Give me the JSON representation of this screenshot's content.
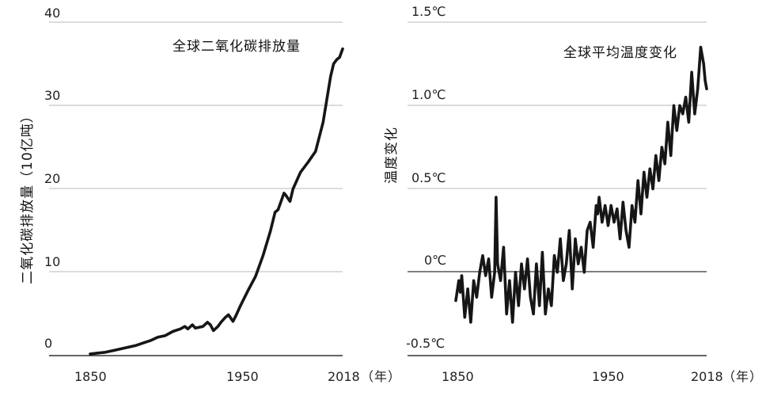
{
  "chart_data": [
    {
      "type": "line",
      "title": "全球二氧化碳排放量",
      "ylabel": "二氧化碳排放量（10亿吨）",
      "xlabel": "",
      "x_unit": "（年）",
      "ylim": [
        0,
        40
      ],
      "xlim": [
        1850,
        2018
      ],
      "grid": true,
      "y_ticks": [
        "0",
        "10",
        "20",
        "30",
        "40"
      ],
      "x_ticks": [
        "1850",
        "1950",
        "2018"
      ],
      "series": [
        {
          "x": [
            1850,
            1855,
            1860,
            1865,
            1870,
            1875,
            1880,
            1885,
            1890,
            1895,
            1900,
            1905,
            1910,
            1913,
            1915,
            1918,
            1920,
            1925,
            1928,
            1930,
            1932,
            1935,
            1937,
            1940,
            1942,
            1945,
            1947,
            1950,
            1955,
            1960,
            1965,
            1970,
            1973,
            1975,
            1979,
            1980,
            1983,
            1985,
            1990,
            1995,
            2000,
            2005,
            2010,
            2012,
            2014,
            2016,
            2018
          ],
          "y": [
            0.2,
            0.3,
            0.4,
            0.6,
            0.8,
            1.0,
            1.2,
            1.5,
            1.8,
            2.2,
            2.4,
            2.9,
            3.2,
            3.5,
            3.2,
            3.7,
            3.3,
            3.5,
            4.0,
            3.7,
            3.0,
            3.5,
            4.0,
            4.6,
            4.9,
            4.1,
            4.8,
            6.0,
            7.8,
            9.5,
            12.0,
            15.0,
            17.2,
            17.5,
            19.5,
            19.3,
            18.5,
            20.0,
            22.0,
            23.2,
            24.5,
            28.0,
            33.5,
            35.0,
            35.5,
            35.8,
            36.8
          ]
        }
      ]
    },
    {
      "type": "line",
      "title": "全球平均温度变化",
      "ylabel": "温度变化",
      "xlabel": "",
      "x_unit": "（年）",
      "ylim": [
        -0.5,
        1.5
      ],
      "xlim": [
        1850,
        2018
      ],
      "grid": true,
      "y_ticks": [
        "-0.5℃",
        "0℃",
        "0.5℃",
        "1.0℃",
        "1.5℃"
      ],
      "x_ticks": [
        "1850",
        "1950",
        "2018"
      ],
      "series": [
        {
          "x": [
            1850,
            1852,
            1853,
            1854,
            1856,
            1858,
            1860,
            1862,
            1864,
            1866,
            1868,
            1870,
            1872,
            1874,
            1876,
            1877,
            1878,
            1880,
            1882,
            1884,
            1886,
            1888,
            1890,
            1892,
            1894,
            1896,
            1898,
            1900,
            1902,
            1904,
            1906,
            1908,
            1910,
            1912,
            1914,
            1916,
            1918,
            1920,
            1922,
            1924,
            1926,
            1928,
            1930,
            1932,
            1934,
            1936,
            1938,
            1940,
            1942,
            1944,
            1945,
            1946,
            1948,
            1950,
            1952,
            1954,
            1956,
            1958,
            1960,
            1962,
            1964,
            1966,
            1968,
            1970,
            1972,
            1974,
            1976,
            1978,
            1980,
            1982,
            1984,
            1986,
            1988,
            1990,
            1992,
            1994,
            1996,
            1998,
            2000,
            2002,
            2004,
            2006,
            2008,
            2010,
            2012,
            2014,
            2015,
            2016,
            2017,
            2018
          ],
          "y": [
            -0.17,
            -0.05,
            -0.12,
            -0.02,
            -0.27,
            -0.1,
            -0.3,
            -0.05,
            -0.15,
            0.0,
            0.1,
            -0.02,
            0.08,
            -0.15,
            0.0,
            0.45,
            0.05,
            -0.05,
            0.15,
            -0.25,
            -0.05,
            -0.3,
            0.0,
            -0.2,
            0.05,
            -0.1,
            0.08,
            -0.15,
            -0.25,
            0.05,
            -0.2,
            0.12,
            -0.25,
            -0.1,
            -0.2,
            0.1,
            0.0,
            0.2,
            -0.05,
            0.05,
            0.25,
            -0.1,
            0.2,
            0.05,
            0.15,
            0.0,
            0.25,
            0.3,
            0.15,
            0.4,
            0.35,
            0.45,
            0.3,
            0.4,
            0.28,
            0.4,
            0.3,
            0.38,
            0.2,
            0.42,
            0.25,
            0.15,
            0.4,
            0.3,
            0.55,
            0.35,
            0.6,
            0.45,
            0.62,
            0.5,
            0.7,
            0.55,
            0.75,
            0.65,
            0.9,
            0.7,
            1.0,
            0.85,
            1.0,
            0.95,
            1.05,
            0.9,
            1.2,
            0.95,
            1.1,
            1.35,
            1.3,
            1.25,
            1.15,
            1.1
          ]
        }
      ]
    }
  ]
}
